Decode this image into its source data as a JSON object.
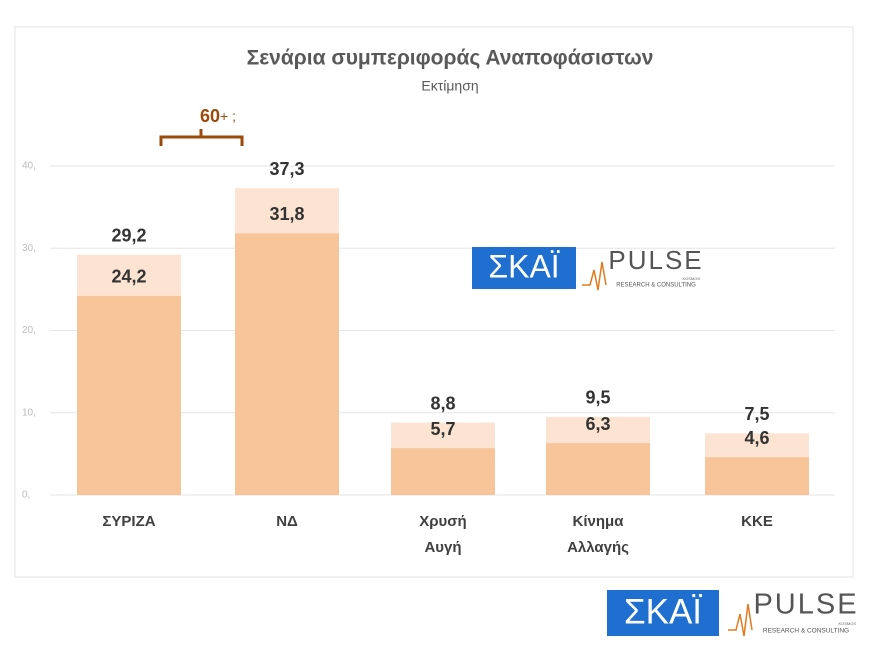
{
  "chart_data": {
    "type": "bar",
    "title": "Σενάρια συμπεριφοράς Αναποφάσιστων",
    "subtitle": "Εκτίμηση",
    "categories": [
      "ΣΥΡΙΖΑ",
      "ΝΔ",
      "Χρυσή Αυγή",
      "Κίνημα Αλλαγής",
      "ΚΚΕ"
    ],
    "series": [
      {
        "color": "#fde3d1",
        "values": [
          29.2,
          37.3,
          8.8,
          9.5,
          7.5
        ],
        "value_labels": [
          "29,2",
          "37,3",
          "8,8",
          "9,5",
          "7,5"
        ]
      },
      {
        "color": "#f8c49a",
        "values": [
          24.2,
          31.8,
          5.7,
          6.3,
          4.6
        ],
        "value_labels": [
          "24,2",
          "31,8",
          "5,7",
          "6,3",
          "4,6"
        ]
      }
    ],
    "ylim": [
      0,
      40
    ],
    "yticks": [
      {
        "value": 0,
        "label": "0,"
      },
      {
        "value": 10,
        "label": "10,"
      },
      {
        "value": 20,
        "label": "20,"
      },
      {
        "value": 30,
        "label": "30,"
      },
      {
        "value": 40,
        "label": "40,"
      }
    ],
    "grid": true,
    "annotation": {
      "bold": "60",
      "rest": "+ ;"
    }
  },
  "logos": {
    "channel": "ΣΚΑΪ",
    "pulse": "PULSE",
    "pulse_sub": "RESEARCH & CONSULTING",
    "pulse_tag": "KOSMOS"
  }
}
